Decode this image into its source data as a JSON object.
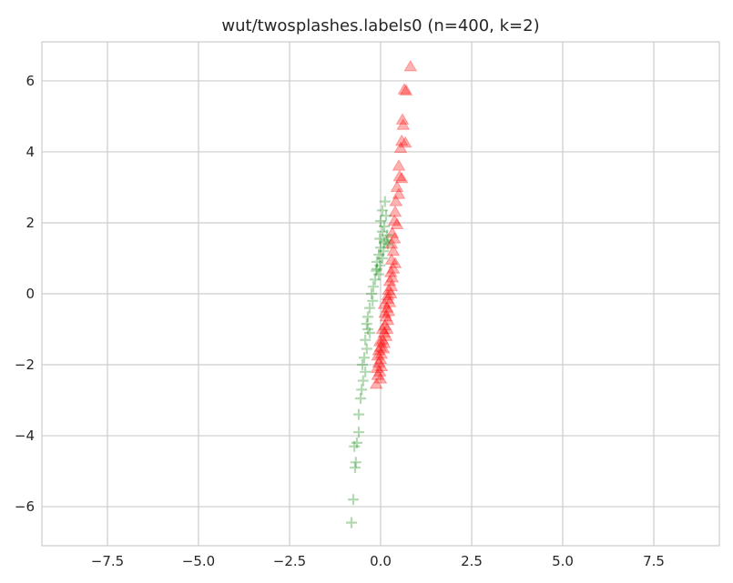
{
  "chart_data": {
    "type": "scatter",
    "title": "wut/twosplashes.labels0 (n=400, k=2)",
    "xlabel": "",
    "ylabel": "",
    "xlim": [
      -9.3,
      9.3
    ],
    "ylim": [
      -7.1,
      7.1
    ],
    "xticks": [
      -7.5,
      -5.0,
      -2.5,
      0.0,
      2.5,
      5.0,
      7.5
    ],
    "xtick_labels": [
      "−7.5",
      "−5.0",
      "−2.5",
      "0.0",
      "2.5",
      "5.0",
      "7.5"
    ],
    "yticks": [
      -6,
      -4,
      -2,
      0,
      2,
      4,
      6
    ],
    "ytick_labels": [
      "−6",
      "−4",
      "−2",
      "0",
      "2",
      "4",
      "6"
    ],
    "grid": true,
    "legend": false,
    "series": [
      {
        "marker": "triangle",
        "color": "#ff0000",
        "opacity": 0.3,
        "points": [
          [
            0.82,
            6.4
          ],
          [
            0.65,
            5.75
          ],
          [
            0.7,
            5.72
          ],
          [
            0.6,
            4.9
          ],
          [
            0.62,
            4.75
          ],
          [
            0.58,
            4.3
          ],
          [
            0.68,
            4.25
          ],
          [
            0.55,
            4.1
          ],
          [
            0.5,
            3.6
          ],
          [
            0.52,
            3.3
          ],
          [
            0.58,
            3.25
          ],
          [
            0.45,
            3.0
          ],
          [
            0.5,
            2.8
          ],
          [
            0.42,
            2.6
          ],
          [
            0.4,
            2.3
          ],
          [
            0.38,
            2.05
          ],
          [
            0.45,
            1.95
          ],
          [
            0.32,
            1.7
          ],
          [
            0.38,
            1.55
          ],
          [
            0.3,
            1.4
          ],
          [
            0.35,
            1.2
          ],
          [
            0.3,
            0.95
          ],
          [
            0.4,
            0.85
          ],
          [
            0.35,
            0.7
          ],
          [
            0.28,
            0.6
          ],
          [
            0.32,
            0.45
          ],
          [
            0.25,
            0.35
          ],
          [
            0.3,
            0.2
          ],
          [
            0.22,
            0.1
          ],
          [
            0.28,
            0.0
          ],
          [
            0.2,
            -0.15
          ],
          [
            0.25,
            -0.25
          ],
          [
            0.18,
            -0.4
          ],
          [
            0.22,
            -0.5
          ],
          [
            0.15,
            -0.65
          ],
          [
            0.2,
            -0.75
          ],
          [
            0.12,
            -0.9
          ],
          [
            0.18,
            -1.0
          ],
          [
            0.1,
            -1.1
          ],
          [
            0.15,
            -1.2
          ],
          [
            0.05,
            -1.3
          ],
          [
            0.1,
            -1.4
          ],
          [
            0.0,
            -1.5
          ],
          [
            0.08,
            -1.55
          ],
          [
            -0.05,
            -1.6
          ],
          [
            0.02,
            -1.7
          ],
          [
            -0.08,
            -1.75
          ],
          [
            0.0,
            -1.85
          ],
          [
            -0.05,
            -1.95
          ],
          [
            0.02,
            -2.05
          ],
          [
            -0.1,
            -2.1
          ],
          [
            -0.02,
            -2.2
          ],
          [
            -0.08,
            -2.3
          ],
          [
            0.0,
            -2.4
          ],
          [
            -0.12,
            -2.55
          ],
          [
            0.1,
            -0.3
          ],
          [
            0.2,
            -0.05
          ],
          [
            0.12,
            -0.55
          ],
          [
            0.05,
            -1.0
          ],
          [
            -0.02,
            -1.35
          ]
        ]
      },
      {
        "marker": "plus",
        "color": "#008000",
        "opacity": 0.3,
        "points": [
          [
            0.12,
            2.6
          ],
          [
            0.05,
            2.35
          ],
          [
            0.15,
            2.2
          ],
          [
            0.0,
            2.05
          ],
          [
            0.1,
            1.9
          ],
          [
            0.05,
            1.75
          ],
          [
            0.18,
            1.65
          ],
          [
            -0.02,
            1.55
          ],
          [
            0.1,
            1.45
          ],
          [
            0.2,
            1.4
          ],
          [
            0.0,
            1.3
          ],
          [
            0.08,
            1.2
          ],
          [
            -0.05,
            1.1
          ],
          [
            0.05,
            1.0
          ],
          [
            -0.1,
            0.9
          ],
          [
            -0.02,
            0.8
          ],
          [
            -0.12,
            0.65
          ],
          [
            -0.05,
            0.55
          ],
          [
            -0.15,
            0.4
          ],
          [
            -0.2,
            0.2
          ],
          [
            -0.25,
            0.0
          ],
          [
            -0.22,
            -0.2
          ],
          [
            -0.3,
            -0.4
          ],
          [
            -0.35,
            -0.65
          ],
          [
            -0.38,
            -0.85
          ],
          [
            -0.3,
            -1.1
          ],
          [
            -0.42,
            -1.3
          ],
          [
            -0.38,
            -1.55
          ],
          [
            -0.45,
            -1.8
          ],
          [
            -0.5,
            -2.0
          ],
          [
            -0.42,
            -2.2
          ],
          [
            -0.48,
            -2.45
          ],
          [
            -0.52,
            -2.7
          ],
          [
            -0.55,
            -2.95
          ],
          [
            -0.6,
            -3.4
          ],
          [
            -0.6,
            -3.9
          ],
          [
            -0.65,
            -4.2
          ],
          [
            -0.72,
            -4.3
          ],
          [
            -0.68,
            -4.75
          ],
          [
            -0.7,
            -4.9
          ],
          [
            -0.75,
            -5.8
          ],
          [
            -0.8,
            -6.45
          ],
          [
            0.15,
            1.5
          ],
          [
            -0.1,
            0.7
          ],
          [
            -0.35,
            -1.0
          ]
        ]
      }
    ]
  }
}
